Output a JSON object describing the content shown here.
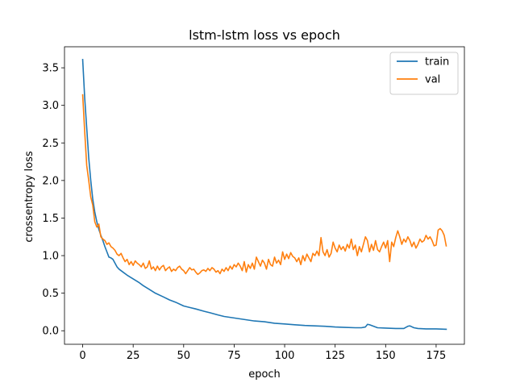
{
  "chart_data": {
    "type": "line",
    "title": "lstm-lstm loss vs epoch",
    "xlabel": "epoch",
    "ylabel": "crossentropy loss",
    "xlim": [
      -9,
      189
    ],
    "ylim": [
      -0.18,
      3.78
    ],
    "xticks": [
      0,
      25,
      50,
      75,
      100,
      125,
      150,
      175
    ],
    "yticks": [
      0.0,
      0.5,
      1.0,
      1.5,
      2.0,
      2.5,
      3.0,
      3.5
    ],
    "legend_position": "top-right",
    "grid": false,
    "series": [
      {
        "name": "train",
        "color": "#1f77b4",
        "points": [
          [
            0,
            3.61
          ],
          [
            1,
            3.1
          ],
          [
            2,
            2.7
          ],
          [
            3,
            2.3
          ],
          [
            4,
            2.0
          ],
          [
            5,
            1.75
          ],
          [
            6,
            1.58
          ],
          [
            7,
            1.45
          ],
          [
            8,
            1.35
          ],
          [
            9,
            1.27
          ],
          [
            10,
            1.2
          ],
          [
            11,
            1.12
          ],
          [
            12,
            1.05
          ],
          [
            13,
            0.98
          ],
          [
            14,
            0.97
          ],
          [
            15,
            0.95
          ],
          [
            16,
            0.9
          ],
          [
            17,
            0.85
          ],
          [
            18,
            0.82
          ],
          [
            20,
            0.78
          ],
          [
            22,
            0.74
          ],
          [
            25,
            0.69
          ],
          [
            28,
            0.64
          ],
          [
            30,
            0.6
          ],
          [
            33,
            0.55
          ],
          [
            36,
            0.5
          ],
          [
            40,
            0.45
          ],
          [
            43,
            0.41
          ],
          [
            46,
            0.38
          ],
          [
            50,
            0.33
          ],
          [
            53,
            0.31
          ],
          [
            56,
            0.29
          ],
          [
            60,
            0.26
          ],
          [
            63,
            0.24
          ],
          [
            67,
            0.21
          ],
          [
            70,
            0.19
          ],
          [
            75,
            0.17
          ],
          [
            80,
            0.15
          ],
          [
            85,
            0.13
          ],
          [
            90,
            0.12
          ],
          [
            95,
            0.1
          ],
          [
            100,
            0.09
          ],
          [
            105,
            0.08
          ],
          [
            110,
            0.07
          ],
          [
            115,
            0.065
          ],
          [
            120,
            0.06
          ],
          [
            125,
            0.05
          ],
          [
            130,
            0.045
          ],
          [
            135,
            0.04
          ],
          [
            138,
            0.04
          ],
          [
            140,
            0.05
          ],
          [
            141,
            0.085
          ],
          [
            142,
            0.08
          ],
          [
            144,
            0.06
          ],
          [
            146,
            0.04
          ],
          [
            150,
            0.035
          ],
          [
            155,
            0.03
          ],
          [
            159,
            0.03
          ],
          [
            161,
            0.06
          ],
          [
            162,
            0.065
          ],
          [
            164,
            0.04
          ],
          [
            166,
            0.03
          ],
          [
            170,
            0.025
          ],
          [
            175,
            0.025
          ],
          [
            180,
            0.02
          ]
        ]
      },
      {
        "name": "val",
        "color": "#ff7f0e",
        "points": [
          [
            0,
            3.14
          ],
          [
            1,
            2.65
          ],
          [
            2,
            2.2
          ],
          [
            3,
            2.0
          ],
          [
            4,
            1.78
          ],
          [
            5,
            1.67
          ],
          [
            6,
            1.45
          ],
          [
            7,
            1.38
          ],
          [
            8,
            1.42
          ],
          [
            9,
            1.25
          ],
          [
            10,
            1.22
          ],
          [
            11,
            1.2
          ],
          [
            12,
            1.15
          ],
          [
            13,
            1.17
          ],
          [
            14,
            1.12
          ],
          [
            15,
            1.1
          ],
          [
            16,
            1.07
          ],
          [
            17,
            1.02
          ],
          [
            18,
            1.0
          ],
          [
            19,
            1.03
          ],
          [
            20,
            0.97
          ],
          [
            21,
            0.92
          ],
          [
            22,
            0.95
          ],
          [
            23,
            0.88
          ],
          [
            24,
            0.92
          ],
          [
            25,
            0.87
          ],
          [
            26,
            0.93
          ],
          [
            27,
            0.9
          ],
          [
            28,
            0.88
          ],
          [
            29,
            0.85
          ],
          [
            30,
            0.9
          ],
          [
            31,
            0.83
          ],
          [
            32,
            0.85
          ],
          [
            33,
            0.93
          ],
          [
            34,
            0.82
          ],
          [
            35,
            0.85
          ],
          [
            36,
            0.8
          ],
          [
            37,
            0.86
          ],
          [
            38,
            0.81
          ],
          [
            39,
            0.85
          ],
          [
            40,
            0.87
          ],
          [
            41,
            0.8
          ],
          [
            42,
            0.83
          ],
          [
            43,
            0.85
          ],
          [
            44,
            0.79
          ],
          [
            45,
            0.82
          ],
          [
            46,
            0.8
          ],
          [
            47,
            0.84
          ],
          [
            48,
            0.86
          ],
          [
            49,
            0.82
          ],
          [
            50,
            0.8
          ],
          [
            51,
            0.76
          ],
          [
            52,
            0.8
          ],
          [
            53,
            0.84
          ],
          [
            54,
            0.81
          ],
          [
            55,
            0.82
          ],
          [
            56,
            0.78
          ],
          [
            57,
            0.75
          ],
          [
            58,
            0.77
          ],
          [
            59,
            0.8
          ],
          [
            60,
            0.81
          ],
          [
            61,
            0.79
          ],
          [
            62,
            0.83
          ],
          [
            63,
            0.8
          ],
          [
            64,
            0.84
          ],
          [
            65,
            0.82
          ],
          [
            66,
            0.78
          ],
          [
            67,
            0.8
          ],
          [
            68,
            0.76
          ],
          [
            69,
            0.82
          ],
          [
            70,
            0.79
          ],
          [
            71,
            0.84
          ],
          [
            72,
            0.8
          ],
          [
            73,
            0.86
          ],
          [
            74,
            0.82
          ],
          [
            75,
            0.88
          ],
          [
            76,
            0.85
          ],
          [
            77,
            0.9
          ],
          [
            78,
            0.86
          ],
          [
            79,
            0.8
          ],
          [
            80,
            0.92
          ],
          [
            81,
            0.78
          ],
          [
            82,
            0.88
          ],
          [
            83,
            0.83
          ],
          [
            84,
            0.9
          ],
          [
            85,
            0.82
          ],
          [
            86,
            0.98
          ],
          [
            87,
            0.92
          ],
          [
            88,
            0.86
          ],
          [
            89,
            0.94
          ],
          [
            90,
            0.9
          ],
          [
            91,
            0.82
          ],
          [
            92,
            0.95
          ],
          [
            93,
            0.88
          ],
          [
            94,
            0.86
          ],
          [
            95,
            0.98
          ],
          [
            96,
            0.9
          ],
          [
            97,
            0.94
          ],
          [
            98,
            0.88
          ],
          [
            99,
            1.05
          ],
          [
            100,
            0.95
          ],
          [
            101,
            1.02
          ],
          [
            102,
            0.96
          ],
          [
            103,
            1.04
          ],
          [
            104,
            0.99
          ],
          [
            105,
            0.97
          ],
          [
            106,
            0.92
          ],
          [
            107,
            0.97
          ],
          [
            108,
            0.88
          ],
          [
            109,
            1.0
          ],
          [
            110,
            0.93
          ],
          [
            111,
            1.02
          ],
          [
            112,
            0.97
          ],
          [
            113,
            0.92
          ],
          [
            114,
            1.03
          ],
          [
            115,
            1.0
          ],
          [
            116,
            1.06
          ],
          [
            117,
            1.0
          ],
          [
            118,
            1.24
          ],
          [
            119,
            1.05
          ],
          [
            120,
            1.0
          ],
          [
            121,
            1.08
          ],
          [
            122,
            0.98
          ],
          [
            123,
            1.03
          ],
          [
            124,
            1.18
          ],
          [
            125,
            1.1
          ],
          [
            126,
            1.05
          ],
          [
            127,
            1.14
          ],
          [
            128,
            1.08
          ],
          [
            129,
            1.12
          ],
          [
            130,
            1.06
          ],
          [
            131,
            1.15
          ],
          [
            132,
            1.1
          ],
          [
            133,
            1.22
          ],
          [
            134,
            1.08
          ],
          [
            135,
            1.14
          ],
          [
            136,
            1.0
          ],
          [
            137,
            1.12
          ],
          [
            138,
            1.05
          ],
          [
            139,
            1.15
          ],
          [
            140,
            1.25
          ],
          [
            141,
            1.2
          ],
          [
            142,
            1.05
          ],
          [
            143,
            1.15
          ],
          [
            144,
            1.07
          ],
          [
            145,
            1.2
          ],
          [
            146,
            1.08
          ],
          [
            147,
            1.05
          ],
          [
            148,
            1.12
          ],
          [
            149,
            1.18
          ],
          [
            150,
            1.1
          ],
          [
            151,
            1.2
          ],
          [
            152,
            0.92
          ],
          [
            153,
            1.18
          ],
          [
            154,
            1.12
          ],
          [
            155,
            1.24
          ],
          [
            156,
            1.33
          ],
          [
            157,
            1.25
          ],
          [
            158,
            1.15
          ],
          [
            159,
            1.22
          ],
          [
            160,
            1.18
          ],
          [
            161,
            1.25
          ],
          [
            162,
            1.2
          ],
          [
            163,
            1.12
          ],
          [
            164,
            1.18
          ],
          [
            165,
            1.1
          ],
          [
            166,
            1.15
          ],
          [
            167,
            1.22
          ],
          [
            168,
            1.18
          ],
          [
            169,
            1.2
          ],
          [
            170,
            1.27
          ],
          [
            171,
            1.22
          ],
          [
            172,
            1.25
          ],
          [
            173,
            1.2
          ],
          [
            174,
            1.13
          ],
          [
            175,
            1.14
          ],
          [
            176,
            1.34
          ],
          [
            177,
            1.36
          ],
          [
            178,
            1.33
          ],
          [
            179,
            1.27
          ],
          [
            180,
            1.13
          ]
        ]
      }
    ]
  }
}
